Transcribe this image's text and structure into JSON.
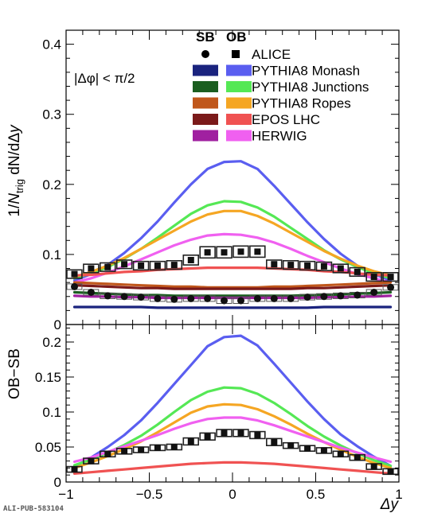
{
  "watermark": "ALI-PUB-583104",
  "legend": {
    "header_left": "SB",
    "header_right": "OB",
    "entries": [
      {
        "label": "ALICE",
        "marker": true,
        "sb_color": "#000000",
        "ob_color": "#000000"
      },
      {
        "label": "PYTHIA8 Monash",
        "marker": false,
        "sb_color": "#1a237e",
        "ob_color": "#5a5ef0"
      },
      {
        "label": "PYTHIA8 Junctions",
        "marker": false,
        "sb_color": "#1b5e20",
        "ob_color": "#55e855"
      },
      {
        "label": "PYTHIA8 Ropes",
        "marker": false,
        "sb_color": "#c0571b",
        "ob_color": "#f5a623"
      },
      {
        "label": "EPOS LHC",
        "marker": false,
        "sb_color": "#7b1a1a",
        "ob_color": "#f05252"
      },
      {
        "label": "HERWIG",
        "marker": false,
        "sb_color": "#a020a0",
        "ob_color": "#f060f0"
      }
    ]
  },
  "chart_data": [
    {
      "type": "line",
      "panel": "top",
      "annotation": "|Δφ| < π/2",
      "ylabel_parts": [
        "1/",
        "N",
        "trig",
        " dN/dΔ",
        "y"
      ],
      "xlim": [
        -1,
        1
      ],
      "ylim": [
        0,
        0.42
      ],
      "yticks": [
        0,
        0.1,
        0.2,
        0.3,
        0.4
      ],
      "ytick_labels": [
        "0",
        "0.1",
        "0.2",
        "0.3",
        "0.4"
      ],
      "x": [
        -0.95,
        -0.85,
        -0.75,
        -0.65,
        -0.55,
        -0.45,
        -0.35,
        -0.25,
        -0.15,
        -0.05,
        0.05,
        0.15,
        0.25,
        0.35,
        0.45,
        0.55,
        0.65,
        0.75,
        0.85,
        0.95
      ],
      "series": [
        {
          "name": "PYTHIA8 Monash",
          "region": "OB",
          "color": "#5a5ef0",
          "values": [
            0.063,
            0.072,
            0.085,
            0.102,
            0.123,
            0.147,
            0.174,
            0.2,
            0.222,
            0.232,
            0.233,
            0.222,
            0.198,
            0.172,
            0.146,
            0.122,
            0.101,
            0.084,
            0.072,
            0.063
          ]
        },
        {
          "name": "PYTHIA8 Junctions",
          "region": "OB",
          "color": "#55e855",
          "values": [
            0.066,
            0.073,
            0.082,
            0.094,
            0.108,
            0.124,
            0.141,
            0.158,
            0.17,
            0.176,
            0.175,
            0.167,
            0.154,
            0.138,
            0.122,
            0.106,
            0.093,
            0.082,
            0.073,
            0.066
          ]
        },
        {
          "name": "PYTHIA8 Ropes",
          "region": "OB",
          "color": "#f5a623",
          "values": [
            0.068,
            0.075,
            0.084,
            0.095,
            0.108,
            0.121,
            0.134,
            0.147,
            0.157,
            0.162,
            0.162,
            0.155,
            0.144,
            0.131,
            0.118,
            0.105,
            0.094,
            0.084,
            0.076,
            0.07
          ]
        },
        {
          "name": "HERWIG",
          "region": "OB",
          "color": "#f060f0",
          "values": [
            0.06,
            0.066,
            0.074,
            0.083,
            0.093,
            0.103,
            0.113,
            0.121,
            0.127,
            0.129,
            0.128,
            0.124,
            0.117,
            0.108,
            0.098,
            0.089,
            0.08,
            0.072,
            0.066,
            0.06
          ]
        },
        {
          "name": "EPOS LHC",
          "region": "OB",
          "color": "#f05252",
          "values": [
            0.07,
            0.071,
            0.073,
            0.075,
            0.076,
            0.078,
            0.079,
            0.08,
            0.081,
            0.081,
            0.081,
            0.081,
            0.08,
            0.079,
            0.078,
            0.076,
            0.075,
            0.073,
            0.071,
            0.07
          ]
        },
        {
          "name": "PYTHIA8 Ropes",
          "region": "SB",
          "color": "#c0571b",
          "values": [
            0.06,
            0.059,
            0.058,
            0.057,
            0.056,
            0.055,
            0.054,
            0.054,
            0.053,
            0.053,
            0.053,
            0.053,
            0.054,
            0.054,
            0.055,
            0.056,
            0.057,
            0.058,
            0.059,
            0.06
          ]
        },
        {
          "name": "EPOS LHC",
          "region": "SB",
          "color": "#7b1a1a",
          "values": [
            0.056,
            0.055,
            0.054,
            0.053,
            0.052,
            0.052,
            0.051,
            0.051,
            0.051,
            0.051,
            0.051,
            0.051,
            0.051,
            0.051,
            0.052,
            0.052,
            0.053,
            0.054,
            0.055,
            0.056
          ]
        },
        {
          "name": "PYTHIA8 Junctions",
          "region": "SB",
          "color": "#1b5e20",
          "values": [
            0.046,
            0.045,
            0.044,
            0.043,
            0.042,
            0.042,
            0.041,
            0.041,
            0.041,
            0.041,
            0.041,
            0.041,
            0.041,
            0.041,
            0.042,
            0.042,
            0.043,
            0.044,
            0.045,
            0.046
          ]
        },
        {
          "name": "HERWIG",
          "region": "SB",
          "color": "#a020a0",
          "values": [
            0.041,
            0.04,
            0.04,
            0.039,
            0.039,
            0.038,
            0.038,
            0.038,
            0.038,
            0.038,
            0.038,
            0.038,
            0.038,
            0.038,
            0.038,
            0.039,
            0.039,
            0.04,
            0.04,
            0.041
          ]
        },
        {
          "name": "PYTHIA8 Monash",
          "region": "SB",
          "color": "#1a237e",
          "values": [
            0.025,
            0.025,
            0.025,
            0.025,
            0.025,
            0.024,
            0.024,
            0.024,
            0.024,
            0.024,
            0.024,
            0.024,
            0.024,
            0.024,
            0.024,
            0.025,
            0.025,
            0.025,
            0.025,
            0.025
          ]
        }
      ],
      "data_points": [
        {
          "name": "ALICE",
          "region": "OB",
          "marker": "square",
          "values": [
            0.072,
            0.08,
            0.082,
            0.086,
            0.084,
            0.084,
            0.085,
            0.092,
            0.103,
            0.103,
            0.104,
            0.104,
            0.086,
            0.085,
            0.084,
            0.083,
            0.08,
            0.075,
            0.068,
            0.068
          ],
          "syst": [
            0.006,
            0.006,
            0.006,
            0.006,
            0.006,
            0.006,
            0.006,
            0.007,
            0.008,
            0.008,
            0.008,
            0.008,
            0.006,
            0.006,
            0.006,
            0.006,
            0.006,
            0.006,
            0.006,
            0.006
          ]
        },
        {
          "name": "ALICE",
          "region": "SB",
          "marker": "circle",
          "values": [
            0.054,
            0.046,
            0.041,
            0.04,
            0.039,
            0.037,
            0.036,
            0.037,
            0.037,
            0.034,
            0.034,
            0.037,
            0.037,
            0.037,
            0.039,
            0.04,
            0.041,
            0.042,
            0.046,
            0.053
          ],
          "syst": [
            0.004,
            0.004,
            0.004,
            0.004,
            0.004,
            0.004,
            0.004,
            0.004,
            0.004,
            0.004,
            0.004,
            0.004,
            0.004,
            0.004,
            0.004,
            0.004,
            0.004,
            0.004,
            0.004,
            0.004
          ]
        }
      ]
    },
    {
      "type": "line",
      "panel": "bottom",
      "ylabel": "OB−SB",
      "xlabel": "Δy",
      "xlim": [
        -1,
        1
      ],
      "ylim": [
        0,
        0.225
      ],
      "xticks": [
        -1,
        -0.5,
        0,
        0.5,
        1
      ],
      "xtick_labels": [
        "−1",
        "−0.5",
        "0",
        "0.5",
        "1"
      ],
      "yticks": [
        0,
        0.05,
        0.1,
        0.15,
        0.2
      ],
      "ytick_labels": [
        "0",
        "0.05",
        "0.1",
        "0.15",
        "0.2"
      ],
      "x": [
        -0.95,
        -0.85,
        -0.75,
        -0.65,
        -0.55,
        -0.45,
        -0.35,
        -0.25,
        -0.15,
        -0.05,
        0.05,
        0.15,
        0.25,
        0.35,
        0.45,
        0.55,
        0.65,
        0.75,
        0.85,
        0.95
      ],
      "series": [
        {
          "name": "PYTHIA8 Monash",
          "color": "#5a5ef0",
          "values": [
            0.022,
            0.035,
            0.05,
            0.067,
            0.088,
            0.113,
            0.14,
            0.167,
            0.194,
            0.207,
            0.209,
            0.195,
            0.169,
            0.142,
            0.115,
            0.09,
            0.068,
            0.051,
            0.036,
            0.023
          ]
        },
        {
          "name": "PYTHIA8 Junctions",
          "color": "#55e855",
          "values": [
            0.024,
            0.032,
            0.042,
            0.053,
            0.066,
            0.082,
            0.1,
            0.117,
            0.129,
            0.135,
            0.134,
            0.126,
            0.113,
            0.097,
            0.08,
            0.065,
            0.052,
            0.041,
            0.031,
            0.023
          ]
        },
        {
          "name": "PYTHIA8 Ropes",
          "color": "#f5a623",
          "values": [
            0.02,
            0.028,
            0.037,
            0.047,
            0.058,
            0.071,
            0.085,
            0.099,
            0.108,
            0.111,
            0.11,
            0.104,
            0.094,
            0.082,
            0.069,
            0.057,
            0.046,
            0.036,
            0.027,
            0.02
          ]
        },
        {
          "name": "HERWIG",
          "color": "#f060f0",
          "values": [
            0.029,
            0.035,
            0.043,
            0.051,
            0.059,
            0.067,
            0.076,
            0.084,
            0.09,
            0.092,
            0.092,
            0.088,
            0.081,
            0.073,
            0.065,
            0.057,
            0.049,
            0.042,
            0.035,
            0.029
          ]
        },
        {
          "name": "EPOS LHC",
          "color": "#f05252",
          "values": [
            0.012,
            0.014,
            0.016,
            0.018,
            0.02,
            0.022,
            0.024,
            0.026,
            0.027,
            0.028,
            0.028,
            0.027,
            0.026,
            0.024,
            0.022,
            0.02,
            0.018,
            0.016,
            0.014,
            0.012
          ]
        }
      ],
      "data_points": [
        {
          "name": "ALICE",
          "region": "OB−SB",
          "marker": "square",
          "values": [
            0.018,
            0.03,
            0.04,
            0.044,
            0.046,
            0.049,
            0.05,
            0.058,
            0.065,
            0.07,
            0.07,
            0.067,
            0.057,
            0.052,
            0.048,
            0.045,
            0.04,
            0.035,
            0.022,
            0.015
          ],
          "syst": [
            0.004,
            0.004,
            0.004,
            0.004,
            0.004,
            0.004,
            0.004,
            0.005,
            0.005,
            0.005,
            0.005,
            0.005,
            0.005,
            0.004,
            0.004,
            0.004,
            0.004,
            0.004,
            0.004,
            0.004
          ]
        }
      ]
    }
  ]
}
